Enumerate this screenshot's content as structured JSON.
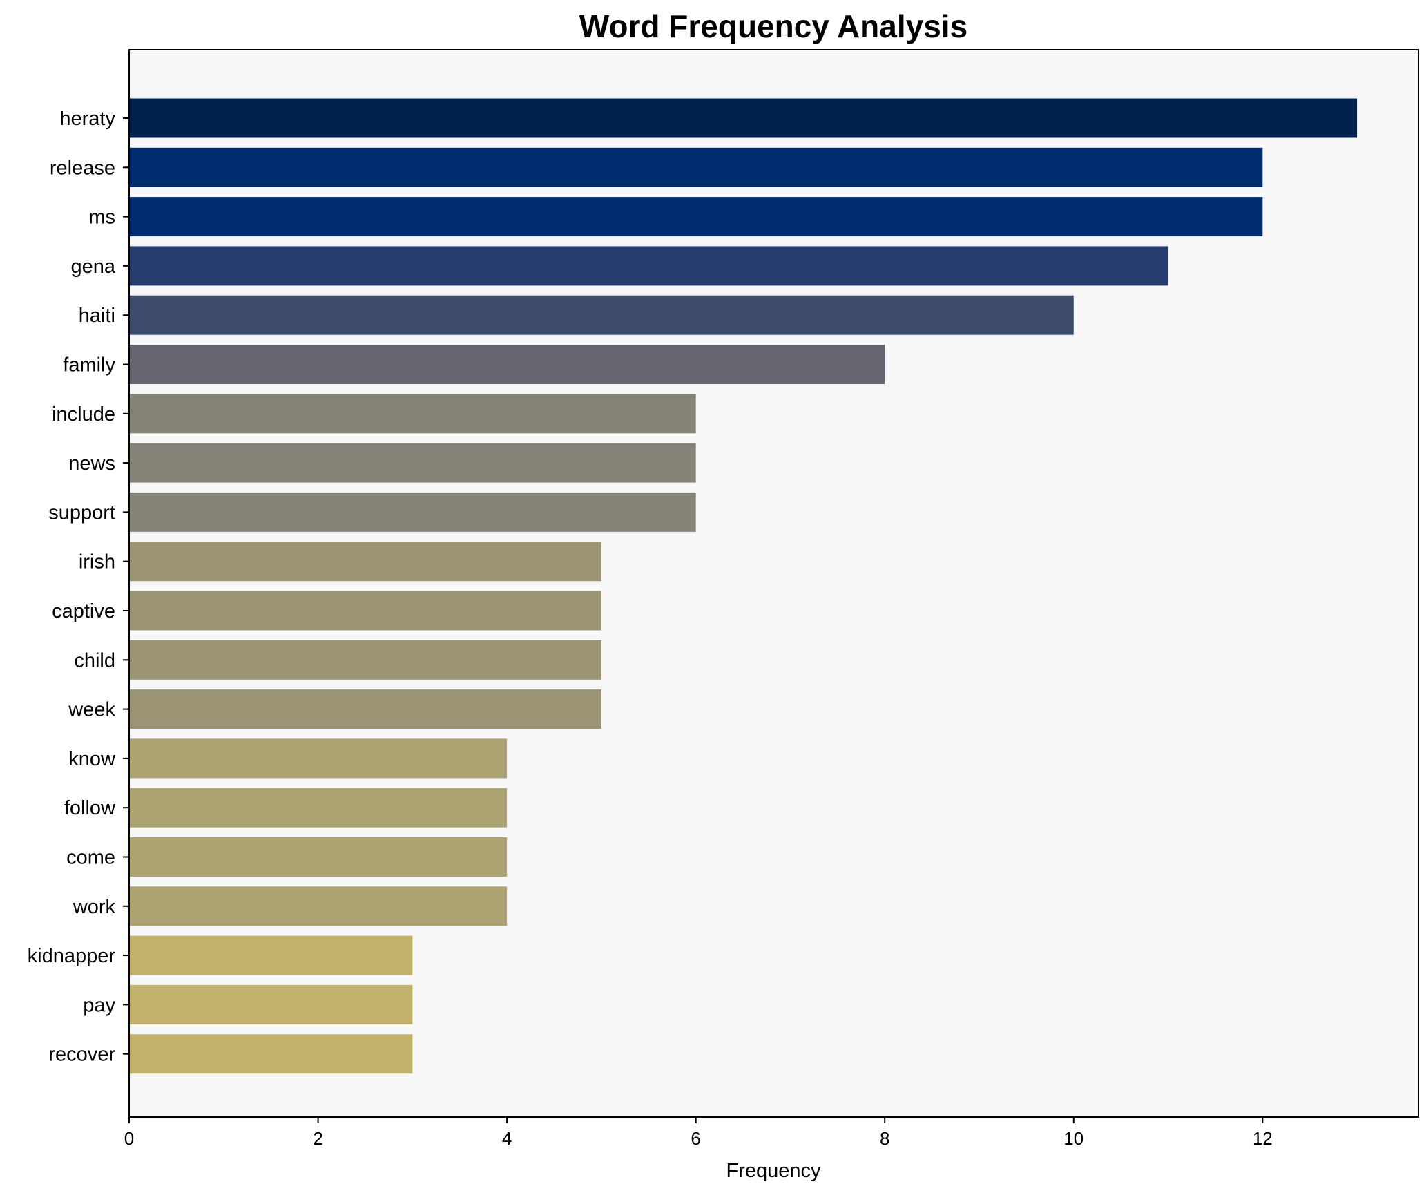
{
  "chart_data": {
    "type": "bar",
    "orientation": "horizontal",
    "title": "Word Frequency Analysis",
    "xlabel": "Frequency",
    "ylabel": "",
    "xlim": [
      0,
      13.65
    ],
    "xticks": [
      0,
      2,
      4,
      6,
      8,
      10,
      12
    ],
    "grid": false,
    "legend": "none",
    "plot_background": "#f8f8f8",
    "categories": [
      "heraty",
      "release",
      "ms",
      "gena",
      "haiti",
      "family",
      "include",
      "news",
      "support",
      "irish",
      "captive",
      "child",
      "week",
      "know",
      "follow",
      "come",
      "work",
      "kidnapper",
      "pay",
      "recover"
    ],
    "values": [
      13,
      12,
      12,
      11,
      10,
      8,
      6,
      6,
      6,
      5,
      5,
      5,
      5,
      4,
      4,
      4,
      4,
      3,
      3,
      3
    ],
    "colors": [
      "#00224e",
      "#002d70",
      "#002d70",
      "#263c6e",
      "#3d4b6c",
      "#64656f",
      "#868379",
      "#868379",
      "#868379",
      "#9b9575",
      "#9b9575",
      "#9b9575",
      "#9b9575",
      "#aca272",
      "#aca272",
      "#aca272",
      "#aca272",
      "#c1b16b",
      "#c1b16b",
      "#c1b16b"
    ]
  }
}
